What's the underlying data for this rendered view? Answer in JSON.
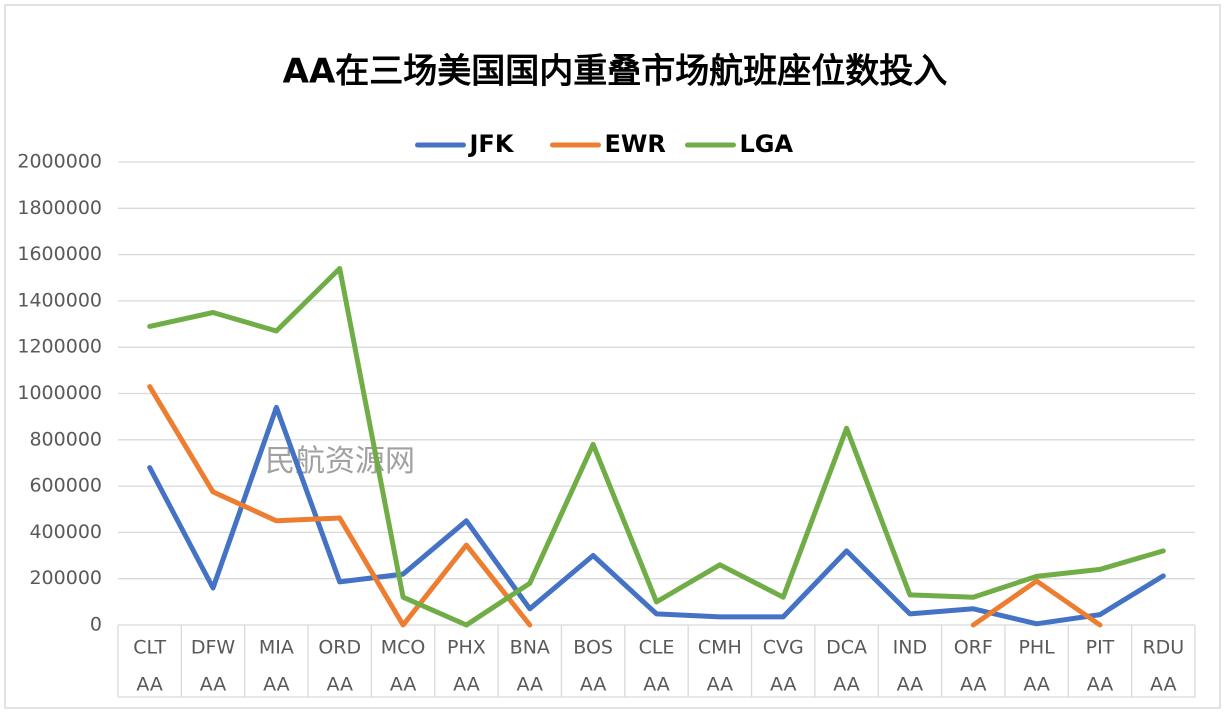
{
  "chart_data": {
    "type": "line",
    "title": "AA在三场美国国内重叠市场航班座位数投入",
    "categories": [
      "CLT",
      "DFW",
      "MIA",
      "ORD",
      "MCO",
      "PHX",
      "BNA",
      "BOS",
      "CLE",
      "CMH",
      "CVG",
      "DCA",
      "IND",
      "ORF",
      "PHL",
      "PIT",
      "RDU"
    ],
    "subcategories": [
      "AA",
      "AA",
      "AA",
      "AA",
      "AA",
      "AA",
      "AA",
      "AA",
      "AA",
      "AA",
      "AA",
      "AA",
      "AA",
      "AA",
      "AA",
      "AA",
      "AA"
    ],
    "series": [
      {
        "name": "JFK",
        "color": "#4472c4",
        "values": [
          680000,
          160000,
          940000,
          186000,
          220000,
          450000,
          70000,
          300000,
          48000,
          35000,
          35000,
          320000,
          48000,
          70000,
          5000,
          45000,
          212000
        ]
      },
      {
        "name": "EWR",
        "color": "#ed7d31",
        "values": [
          1030000,
          575000,
          450000,
          462000,
          0,
          345000,
          0,
          null,
          null,
          null,
          null,
          null,
          null,
          0,
          190000,
          0,
          null
        ]
      },
      {
        "name": "LGA",
        "color": "#70ad47",
        "values": [
          1290000,
          1350000,
          1270000,
          1540000,
          120000,
          0,
          180000,
          780000,
          100000,
          260000,
          120000,
          850000,
          130000,
          120000,
          210000,
          240000,
          320000
        ]
      }
    ],
    "ylim": [
      0,
      2000000
    ],
    "yticks": [
      0,
      200000,
      400000,
      600000,
      800000,
      1000000,
      1200000,
      1400000,
      1600000,
      1800000,
      2000000
    ],
    "grid": true,
    "legend": "top",
    "watermark": "民航资源网"
  }
}
